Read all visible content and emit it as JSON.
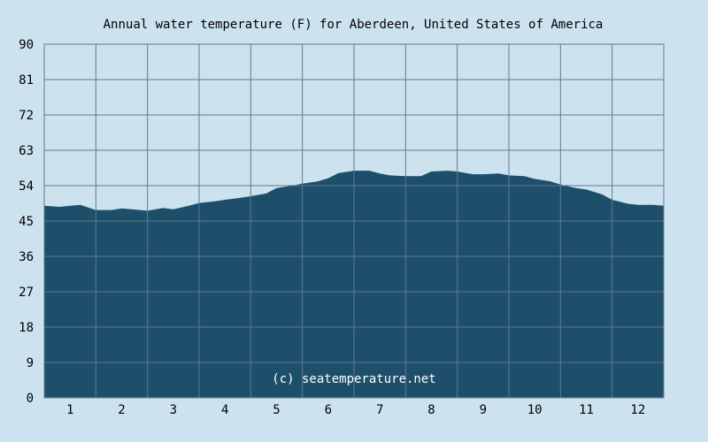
{
  "chart_data": {
    "type": "area",
    "title": "Annual water temperature (F) for Aberdeen, United States of America",
    "xlabel": "",
    "ylabel": "",
    "x_ticks": [
      "1",
      "2",
      "3",
      "4",
      "5",
      "6",
      "7",
      "8",
      "9",
      "10",
      "11",
      "12"
    ],
    "y_ticks": [
      "0",
      "9",
      "18",
      "27",
      "36",
      "45",
      "54",
      "63",
      "72",
      "81",
      "90"
    ],
    "ylim": [
      0,
      90
    ],
    "xlim": [
      0.5,
      12.5
    ],
    "grid": true,
    "x": [
      0.5,
      0.8,
      1.0,
      1.2,
      1.5,
      1.8,
      2.0,
      2.2,
      2.5,
      2.8,
      3.0,
      3.3,
      3.5,
      3.8,
      4.0,
      4.3,
      4.5,
      4.8,
      5.0,
      5.3,
      5.5,
      5.8,
      6.0,
      6.2,
      6.5,
      6.8,
      7.0,
      7.2,
      7.5,
      7.8,
      8.0,
      8.3,
      8.5,
      8.8,
      9.0,
      9.3,
      9.5,
      9.8,
      10.0,
      10.3,
      10.5,
      10.8,
      11.0,
      11.3,
      11.5,
      11.8,
      12.0,
      12.3,
      12.5
    ],
    "values": [
      48.9,
      48.6,
      48.9,
      49.1,
      47.8,
      47.8,
      48.2,
      48.0,
      47.6,
      48.3,
      48.0,
      48.9,
      49.6,
      50.0,
      50.4,
      50.9,
      51.3,
      52.0,
      53.4,
      54.0,
      54.5,
      55.1,
      55.9,
      57.2,
      57.8,
      57.8,
      57.1,
      56.6,
      56.4,
      56.4,
      57.6,
      57.8,
      57.6,
      56.9,
      56.9,
      57.1,
      56.6,
      56.4,
      55.7,
      55.1,
      54.3,
      53.4,
      53.0,
      51.8,
      50.4,
      49.4,
      49.1,
      49.1,
      48.9
    ],
    "colors": {
      "background": "#cce3ef",
      "area_fill": "#1e4f6a",
      "grid": "#5e7a90",
      "credit_text": "#ffffff"
    },
    "watermark": "(c) seatemperature.net"
  }
}
